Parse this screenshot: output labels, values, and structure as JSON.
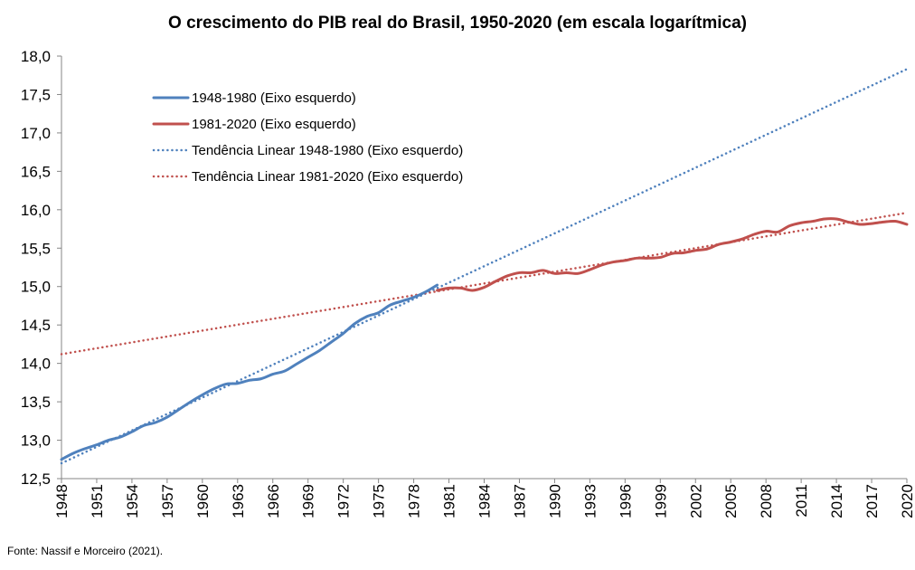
{
  "chart_data": {
    "type": "line",
    "title": "O crescimento do PIB real do Brasil, 1950-2020 (em escala logarítmica)",
    "xlabel": "",
    "ylabel": "",
    "xlim": [
      1948,
      2020
    ],
    "ylim": [
      12.5,
      18.0
    ],
    "y_ticks": [
      "12,5",
      "13,0",
      "13,5",
      "14,0",
      "14,5",
      "15,0",
      "15,5",
      "16,0",
      "16,5",
      "17,0",
      "17,5",
      "18,0"
    ],
    "x_ticks": [
      "1948",
      "1951",
      "1954",
      "1957",
      "1960",
      "1963",
      "1966",
      "1969",
      "1972",
      "1975",
      "1978",
      "1981",
      "1984",
      "1987",
      "1990",
      "1993",
      "1996",
      "1999",
      "2002",
      "2005",
      "2008",
      "2011",
      "2014",
      "2017",
      "2020"
    ],
    "grid": false,
    "legend_position": "top-left",
    "colors": {
      "blue": "#4f81bd",
      "red": "#c0504d"
    },
    "series": [
      {
        "name": "1948-1980 (Eixo esquerdo)",
        "style": "solid",
        "color": "#4f81bd",
        "x": [
          1948,
          1949,
          1950,
          1951,
          1952,
          1953,
          1954,
          1955,
          1956,
          1957,
          1958,
          1959,
          1960,
          1961,
          1962,
          1963,
          1964,
          1965,
          1966,
          1967,
          1968,
          1969,
          1970,
          1971,
          1972,
          1973,
          1974,
          1975,
          1976,
          1977,
          1978,
          1979,
          1980
        ],
        "values": [
          12.75,
          12.83,
          12.89,
          12.94,
          13.0,
          13.04,
          13.11,
          13.19,
          13.23,
          13.3,
          13.4,
          13.5,
          13.59,
          13.67,
          13.73,
          13.74,
          13.78,
          13.8,
          13.86,
          13.9,
          13.99,
          14.08,
          14.17,
          14.28,
          14.39,
          14.52,
          14.61,
          14.66,
          14.76,
          14.81,
          14.86,
          14.93,
          15.02
        ]
      },
      {
        "name": "1981-2020 (Eixo esquerdo)",
        "style": "solid",
        "color": "#c0504d",
        "x": [
          1980,
          1981,
          1982,
          1983,
          1984,
          1985,
          1986,
          1987,
          1988,
          1989,
          1990,
          1991,
          1992,
          1993,
          1994,
          1995,
          1996,
          1997,
          1998,
          1999,
          2000,
          2001,
          2002,
          2003,
          2004,
          2005,
          2006,
          2007,
          2008,
          2009,
          2010,
          2011,
          2012,
          2013,
          2014,
          2015,
          2016,
          2017,
          2018,
          2019,
          2020
        ],
        "values": [
          14.95,
          14.98,
          14.98,
          14.95,
          14.99,
          15.07,
          15.14,
          15.18,
          15.18,
          15.21,
          15.17,
          15.18,
          15.17,
          15.22,
          15.28,
          15.32,
          15.34,
          15.37,
          15.37,
          15.38,
          15.43,
          15.44,
          15.47,
          15.49,
          15.55,
          15.58,
          15.62,
          15.68,
          15.72,
          15.71,
          15.79,
          15.83,
          15.85,
          15.88,
          15.88,
          15.84,
          15.81,
          15.82,
          15.84,
          15.85,
          15.81
        ]
      },
      {
        "name": "Tendência Linear 1948-1980 (Eixo esquerdo)",
        "style": "dotted",
        "color": "#4f81bd",
        "x": [
          1948,
          2020
        ],
        "values": [
          12.7,
          17.83
        ]
      },
      {
        "name": "Tendência Linear 1981-2020 (Eixo esquerdo)",
        "style": "dotted",
        "color": "#c0504d",
        "x": [
          1948,
          2020
        ],
        "values": [
          14.12,
          15.96
        ]
      }
    ]
  },
  "source_text": "Fonte: Nassif e Morceiro (2021)."
}
